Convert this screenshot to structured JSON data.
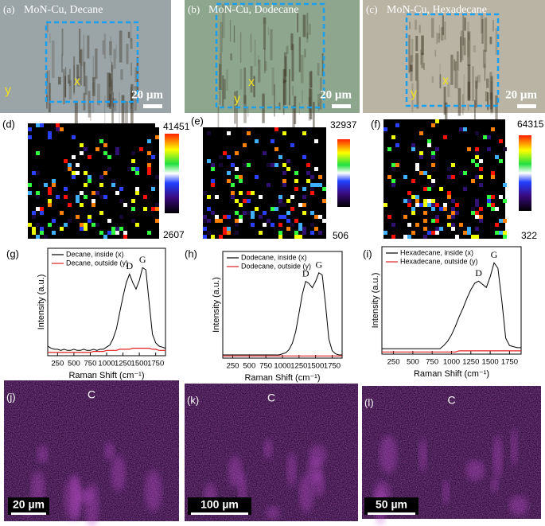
{
  "panels": [
    {
      "label": "(a)",
      "caption": "MoN-Cu, Decane",
      "scale_bar": "20 µm",
      "markers": [
        "y",
        "x"
      ]
    },
    {
      "label": "(b)",
      "caption": "MoN-Cu, Dodecane",
      "scale_bar": "20 µm",
      "markers": [
        "y",
        "x"
      ]
    },
    {
      "label": "(c)",
      "caption": "MoN-Cu, Hexadecane",
      "scale_bar": "20 µm",
      "markers": [
        "y",
        "x"
      ]
    }
  ],
  "maps": [
    {
      "label": "(d)",
      "max": 41451,
      "min": 2607
    },
    {
      "label": "(e)",
      "max": 32937,
      "min": 506
    },
    {
      "label": "(f)",
      "max": 64315,
      "min": 322
    }
  ],
  "chart_data": [
    {
      "type": "line",
      "label": "(g)",
      "x_label": "Raman Shift (cm⁻¹)",
      "y_label": "Intensity (a.u.)",
      "annotations": [
        "D",
        "G"
      ],
      "x": [
        100,
        150,
        200,
        250,
        300,
        350,
        400,
        450,
        500,
        550,
        600,
        650,
        700,
        750,
        800,
        850,
        900,
        950,
        1000,
        1050,
        1100,
        1150,
        1200,
        1250,
        1300,
        1350,
        1400,
        1450,
        1500,
        1550,
        1600,
        1650,
        1700,
        1750,
        1800,
        1850,
        1900
      ],
      "xlim": [
        100,
        1900
      ],
      "xticks": [
        250,
        500,
        750,
        1000,
        1250,
        1500,
        1750
      ],
      "ylim": [
        0,
        1
      ],
      "series": [
        {
          "name": "Decane, inside (x)",
          "color": "#000000",
          "values": [
            0.09,
            0.07,
            0.06,
            0.06,
            0.05,
            0.06,
            0.05,
            0.05,
            0.06,
            0.05,
            0.05,
            0.06,
            0.05,
            0.05,
            0.06,
            0.05,
            0.06,
            0.06,
            0.08,
            0.1,
            0.16,
            0.25,
            0.4,
            0.55,
            0.68,
            0.76,
            0.68,
            0.62,
            0.7,
            0.82,
            0.8,
            0.5,
            0.2,
            0.12,
            0.09,
            0.08,
            0.07
          ]
        },
        {
          "name": "Decane, outside (y)",
          "color": "#e02020",
          "values": [
            0.03,
            0.03,
            0.03,
            0.03,
            0.03,
            0.03,
            0.03,
            0.03,
            0.03,
            0.03,
            0.03,
            0.03,
            0.03,
            0.03,
            0.04,
            0.04,
            0.04,
            0.04,
            0.05,
            0.05,
            0.05,
            0.05,
            0.06,
            0.06,
            0.06,
            0.06,
            0.07,
            0.07,
            0.07,
            0.07,
            0.07,
            0.07,
            0.06,
            0.06,
            0.05,
            0.05,
            0.05
          ]
        }
      ]
    },
    {
      "type": "line",
      "label": "(h)",
      "x_label": "Raman Shift (cm⁻¹)",
      "y_label": "Intensity (a.u.)",
      "annotations": [
        "D",
        "G"
      ],
      "x": [
        100,
        150,
        200,
        250,
        300,
        350,
        400,
        450,
        500,
        550,
        600,
        650,
        700,
        750,
        800,
        850,
        900,
        950,
        1000,
        1050,
        1100,
        1150,
        1200,
        1250,
        1300,
        1350,
        1400,
        1450,
        1500,
        1550,
        1600,
        1650,
        1700,
        1750,
        1800,
        1850,
        1900
      ],
      "xlim": [
        100,
        1900
      ],
      "xticks": [
        250,
        500,
        750,
        1000,
        1250,
        1500,
        1750
      ],
      "ylim": [
        0,
        1
      ],
      "series": [
        {
          "name": "Dodecane, inside (x)",
          "color": "#000000",
          "values": [
            0.03,
            0.03,
            0.03,
            0.03,
            0.03,
            0.03,
            0.03,
            0.03,
            0.03,
            0.03,
            0.03,
            0.03,
            0.03,
            0.03,
            0.03,
            0.03,
            0.03,
            0.03,
            0.04,
            0.05,
            0.08,
            0.14,
            0.25,
            0.42,
            0.6,
            0.72,
            0.7,
            0.66,
            0.72,
            0.8,
            0.78,
            0.5,
            0.18,
            0.07,
            0.04,
            0.03,
            0.03
          ]
        },
        {
          "name": "Dodecane, outside (y)",
          "color": "#e02020",
          "values": [
            0.02,
            0.02,
            0.02,
            0.02,
            0.02,
            0.02,
            0.02,
            0.02,
            0.02,
            0.02,
            0.02,
            0.02,
            0.02,
            0.02,
            0.02,
            0.02,
            0.02,
            0.02,
            0.02,
            0.02,
            0.02,
            0.02,
            0.02,
            0.02,
            0.02,
            0.02,
            0.02,
            0.02,
            0.02,
            0.02,
            0.02,
            0.02,
            0.02,
            0.02,
            0.02,
            0.02,
            0.02
          ]
        }
      ]
    },
    {
      "type": "line",
      "label": "(i)",
      "x_label": "Raman Shift (cm⁻¹)",
      "y_label": "Intensity (a.u.)",
      "annotations": [
        "D",
        "G"
      ],
      "x": [
        100,
        150,
        200,
        250,
        300,
        350,
        400,
        450,
        500,
        550,
        600,
        650,
        700,
        750,
        800,
        850,
        900,
        950,
        1000,
        1050,
        1100,
        1150,
        1200,
        1250,
        1300,
        1350,
        1400,
        1450,
        1500,
        1550,
        1600,
        1650,
        1700,
        1750,
        1800,
        1850,
        1900
      ],
      "xlim": [
        100,
        1900
      ],
      "xticks": [
        250,
        500,
        750,
        1000,
        1250,
        1500,
        1750
      ],
      "ylim": [
        0,
        1
      ],
      "series": [
        {
          "name": "Hexadecane, inside (x)",
          "color": "#000000",
          "values": [
            0.05,
            0.05,
            0.05,
            0.05,
            0.05,
            0.05,
            0.05,
            0.05,
            0.05,
            0.05,
            0.05,
            0.05,
            0.05,
            0.05,
            0.05,
            0.05,
            0.08,
            0.12,
            0.18,
            0.26,
            0.35,
            0.43,
            0.52,
            0.6,
            0.66,
            0.68,
            0.65,
            0.62,
            0.72,
            0.85,
            0.8,
            0.5,
            0.15,
            0.08,
            0.07,
            0.06,
            0.06
          ]
        },
        {
          "name": "Hexadecane, outside (y)",
          "color": "#e02020",
          "values": [
            0.02,
            0.02,
            0.02,
            0.02,
            0.02,
            0.02,
            0.02,
            0.02,
            0.02,
            0.02,
            0.02,
            0.02,
            0.02,
            0.02,
            0.02,
            0.02,
            0.02,
            0.02,
            0.02,
            0.02,
            0.03,
            0.03,
            0.03,
            0.03,
            0.03,
            0.03,
            0.03,
            0.03,
            0.03,
            0.03,
            0.03,
            0.03,
            0.03,
            0.03,
            0.03,
            0.03,
            0.03
          ]
        }
      ]
    }
  ],
  "eds": [
    {
      "label": "(j)",
      "element": "C",
      "scale_bar": "20 µm"
    },
    {
      "label": "(k)",
      "element": "C",
      "scale_bar": "100 µm"
    },
    {
      "label": "(l)",
      "element": "C",
      "scale_bar": "50 µm"
    }
  ]
}
